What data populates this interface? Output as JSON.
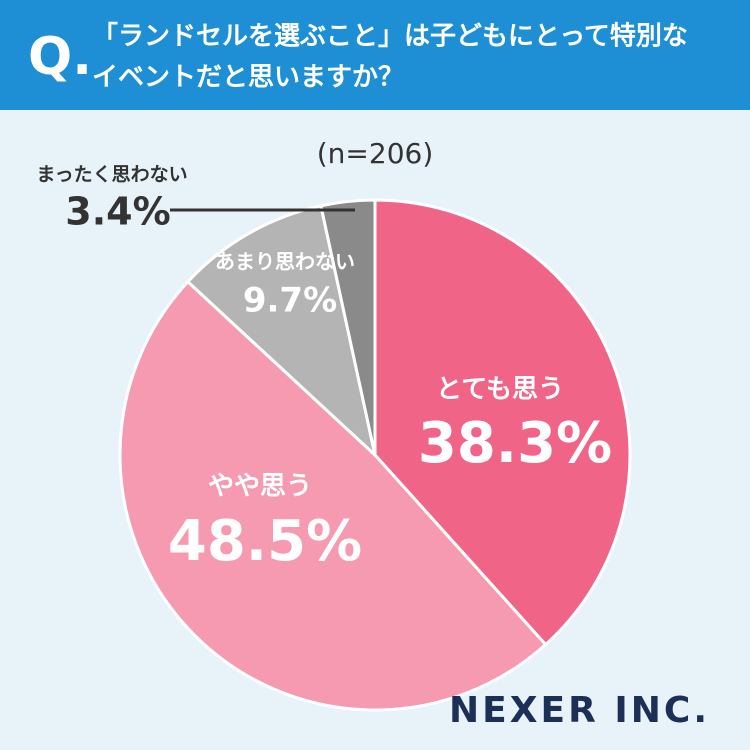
{
  "chart_data": {
    "type": "pie",
    "question_mark": "Q.",
    "title": [
      "「ランドセルを選ぶこと」は子どもにとって特別な",
      "イベントだと思いますか？"
    ],
    "subtitle": "(n=206)",
    "categories": [
      "とても思う",
      "やや思う",
      "あまり思わない",
      "まったく思わない"
    ],
    "values": [
      38.3,
      48.5,
      9.7,
      3.4
    ],
    "value_labels": [
      "38.3%",
      "48.5%",
      "9.7%",
      "3.4%"
    ],
    "colors": [
      "#f06488",
      "#f59ab0",
      "#b4b4b4",
      "#8a8a8a"
    ],
    "logo": "NEXER INC."
  }
}
